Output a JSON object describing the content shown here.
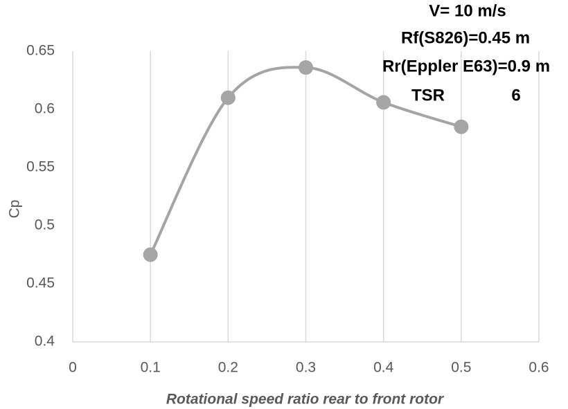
{
  "chart_data": {
    "type": "scatter",
    "x_label": "Rotational speed ratio rear to front rotor",
    "y_label": "Cp",
    "annotations": [
      "V= 10 m/s",
      "Rf(S826)=0.45 m",
      "Rr(Eppler E63)=0.9 m",
      "TSR",
      "6"
    ],
    "x": [
      0.1,
      0.2,
      0.3,
      0.4,
      0.5
    ],
    "values": [
      0.475,
      0.61,
      0.636,
      0.606,
      0.585
    ],
    "color": "#a5a5a5",
    "xlim": [
      0,
      0.6
    ],
    "xticks": [
      0,
      0.1,
      0.2,
      0.3,
      0.4,
      0.5,
      0.6
    ],
    "ylim": [
      0.4,
      0.65
    ],
    "yticks": [
      0.4,
      0.45,
      0.5,
      0.55,
      0.6,
      0.65
    ],
    "grid": true
  }
}
